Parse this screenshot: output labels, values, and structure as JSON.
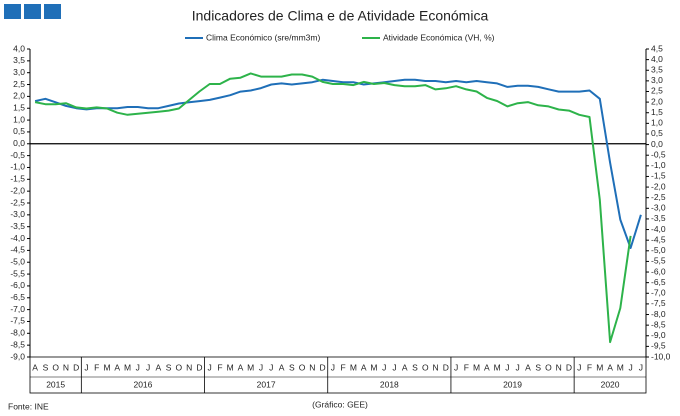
{
  "chart_data": {
    "type": "line",
    "title": "Indicadores de Clima e de Atividade Económica",
    "source": "Fonte: INE",
    "credit": "(Gráfico: GEE)",
    "categories": [
      "A",
      "S",
      "O",
      "N",
      "D",
      "J",
      "F",
      "M",
      "A",
      "M",
      "J",
      "J",
      "A",
      "S",
      "O",
      "N",
      "D",
      "J",
      "F",
      "M",
      "A",
      "M",
      "J",
      "J",
      "A",
      "S",
      "O",
      "N",
      "D",
      "J",
      "F",
      "M",
      "A",
      "M",
      "J",
      "J",
      "A",
      "S",
      "O",
      "N",
      "D",
      "J",
      "F",
      "M",
      "A",
      "M",
      "J",
      "J",
      "A",
      "S",
      "O",
      "N",
      "D",
      "J",
      "F",
      "M",
      "A",
      "M",
      "J",
      "J"
    ],
    "years": [
      "2015",
      "2016",
      "2017",
      "2018",
      "2019",
      "2020"
    ],
    "year_spans": [
      5,
      12,
      12,
      12,
      12,
      7
    ],
    "series": [
      {
        "name": "Clima Económico (sre/mm3m)",
        "color": "#1f6fb8",
        "axis": "y",
        "values": [
          1.8,
          1.9,
          1.75,
          1.6,
          1.5,
          1.45,
          1.5,
          1.5,
          1.5,
          1.55,
          1.55,
          1.5,
          1.5,
          1.6,
          1.7,
          1.75,
          1.8,
          1.85,
          1.95,
          2.05,
          2.2,
          2.25,
          2.35,
          2.5,
          2.55,
          2.5,
          2.55,
          2.6,
          2.7,
          2.65,
          2.6,
          2.6,
          2.5,
          2.55,
          2.6,
          2.65,
          2.7,
          2.7,
          2.65,
          2.65,
          2.6,
          2.65,
          2.6,
          2.65,
          2.6,
          2.55,
          2.4,
          2.45,
          2.45,
          2.4,
          2.3,
          2.2,
          2.2,
          2.2,
          2.25,
          1.9,
          -0.8,
          -3.2,
          -4.4,
          -3.0
        ]
      },
      {
        "name": "Atividade Económica (VH, %)",
        "color": "#2db34a",
        "axis": "y2",
        "values": [
          2.0,
          1.9,
          1.9,
          1.95,
          1.75,
          1.7,
          1.75,
          1.7,
          1.5,
          1.4,
          1.45,
          1.5,
          1.55,
          1.6,
          1.7,
          2.1,
          2.5,
          2.85,
          2.85,
          3.1,
          3.15,
          3.35,
          3.2,
          3.2,
          3.2,
          3.3,
          3.3,
          3.2,
          2.95,
          2.85,
          2.85,
          2.8,
          2.95,
          2.85,
          2.9,
          2.8,
          2.75,
          2.75,
          2.8,
          2.6,
          2.65,
          2.75,
          2.6,
          2.5,
          2.2,
          2.05,
          1.8,
          1.95,
          2.0,
          1.85,
          1.8,
          1.65,
          1.6,
          1.4,
          1.3,
          -2.6,
          -9.3,
          -7.7,
          -4.3,
          null
        ]
      }
    ],
    "ylim": [
      -9,
      4
    ],
    "yticks": [
      {
        "value": 4,
        "label": "4,0"
      },
      {
        "value": 3.5,
        "label": "3,5"
      },
      {
        "value": 3,
        "label": "3,0"
      },
      {
        "value": 2.5,
        "label": "2,5"
      },
      {
        "value": 2,
        "label": "2,0"
      },
      {
        "value": 1.5,
        "label": "1,5"
      },
      {
        "value": 1,
        "label": "1,0"
      },
      {
        "value": 0.5,
        "label": "0,5"
      },
      {
        "value": 0,
        "label": "0,0"
      },
      {
        "value": -0.5,
        "label": "-0,5"
      },
      {
        "value": -1,
        "label": "-1,0"
      },
      {
        "value": -1.5,
        "label": "-1,5"
      },
      {
        "value": -2,
        "label": "-2,0"
      },
      {
        "value": -2.5,
        "label": "-2,5"
      },
      {
        "value": -3,
        "label": "-3,0"
      },
      {
        "value": -3.5,
        "label": "-3,5"
      },
      {
        "value": -4,
        "label": "-4,0"
      },
      {
        "value": -4.5,
        "label": "-4,5"
      },
      {
        "value": -5,
        "label": "-5,0"
      },
      {
        "value": -5.5,
        "label": "-5,5"
      },
      {
        "value": -6,
        "label": "-6,0"
      },
      {
        "value": -6.5,
        "label": "-6,5"
      },
      {
        "value": -7,
        "label": "-7,0"
      },
      {
        "value": -7.5,
        "label": "-7,5"
      },
      {
        "value": -8,
        "label": "-8,0"
      },
      {
        "value": -8.5,
        "label": "-8,5"
      },
      {
        "value": -9,
        "label": "-9,0"
      }
    ],
    "y2lim": [
      -10,
      4.5
    ],
    "y2ticks": [
      {
        "value": 4.5,
        "label": "4,5"
      },
      {
        "value": 4,
        "label": "4,0"
      },
      {
        "value": 3.5,
        "label": "3,5"
      },
      {
        "value": 3,
        "label": "3,0"
      },
      {
        "value": 2.5,
        "label": "2,5"
      },
      {
        "value": 2,
        "label": "2,0"
      },
      {
        "value": 1.5,
        "label": "1,5"
      },
      {
        "value": 1,
        "label": "1,0"
      },
      {
        "value": 0.5,
        "label": "0,5"
      },
      {
        "value": 0,
        "label": "0,0"
      },
      {
        "value": -0.5,
        "label": "-0,5"
      },
      {
        "value": -1,
        "label": "-1,0"
      },
      {
        "value": -1.5,
        "label": "-1,5"
      },
      {
        "value": -2,
        "label": "-2,0"
      },
      {
        "value": -2.5,
        "label": "-2,5"
      },
      {
        "value": -3,
        "label": "-3,0"
      },
      {
        "value": -3.5,
        "label": "-3,5"
      },
      {
        "value": -4,
        "label": "-4,0"
      },
      {
        "value": -4.5,
        "label": "-4,5"
      },
      {
        "value": -5,
        "label": "-5,0"
      },
      {
        "value": -5.5,
        "label": "-5,5"
      },
      {
        "value": -6,
        "label": "-6,0"
      },
      {
        "value": -6.5,
        "label": "-6,5"
      },
      {
        "value": -7,
        "label": "-7,0"
      },
      {
        "value": -7.5,
        "label": "-7,5"
      },
      {
        "value": -8,
        "label": "-8,0"
      },
      {
        "value": -8.5,
        "label": "-8,5"
      },
      {
        "value": -9,
        "label": "-9,0"
      },
      {
        "value": -9.5,
        "label": "-9,5"
      },
      {
        "value": -10,
        "label": "-10,0"
      }
    ],
    "legend": "top"
  }
}
